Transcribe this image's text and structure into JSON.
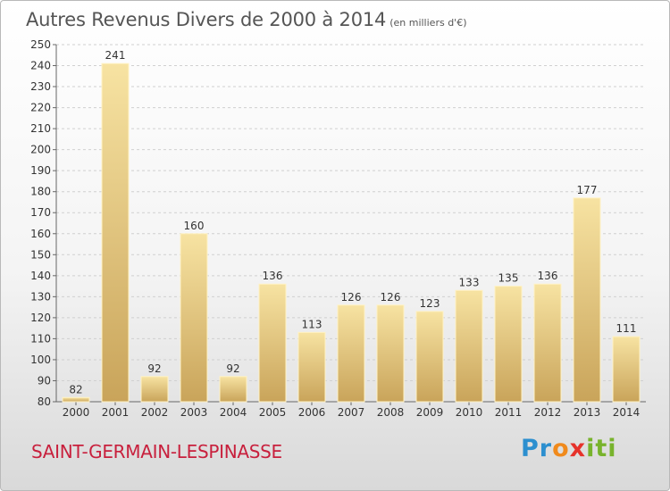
{
  "page": {
    "title": "Autres Revenus Divers de 2000 à 2014",
    "title_unit": "(en milliers d'€)",
    "city": "SAINT-GERMAIN-LESPINASSE",
    "logo": {
      "part1": "Pr",
      "part2": "o",
      "part3": "x",
      "part4": "iti"
    }
  },
  "colors": {
    "bar_top": "#f7e3a2",
    "bar_bottom": "#c9a45a",
    "bar_edge": "#fff2c4",
    "grid": "#d0d0d0",
    "title_text": "#555555",
    "city_text": "#c8203d"
  },
  "chart_data": {
    "type": "bar",
    "categories": [
      "2000",
      "2001",
      "2002",
      "2003",
      "2004",
      "2005",
      "2006",
      "2007",
      "2008",
      "2009",
      "2010",
      "2011",
      "2012",
      "2013",
      "2014"
    ],
    "values": [
      82,
      241,
      92,
      160,
      92,
      136,
      113,
      126,
      126,
      123,
      133,
      135,
      136,
      177,
      111
    ],
    "title": "Autres Revenus Divers de 2000 à 2014",
    "xlabel": "",
    "ylabel": "",
    "ylim": [
      80,
      250
    ],
    "yticks": [
      80,
      90,
      100,
      110,
      120,
      130,
      140,
      150,
      160,
      170,
      180,
      190,
      200,
      210,
      220,
      230,
      240,
      250
    ],
    "grid": true,
    "data_labels": true
  }
}
